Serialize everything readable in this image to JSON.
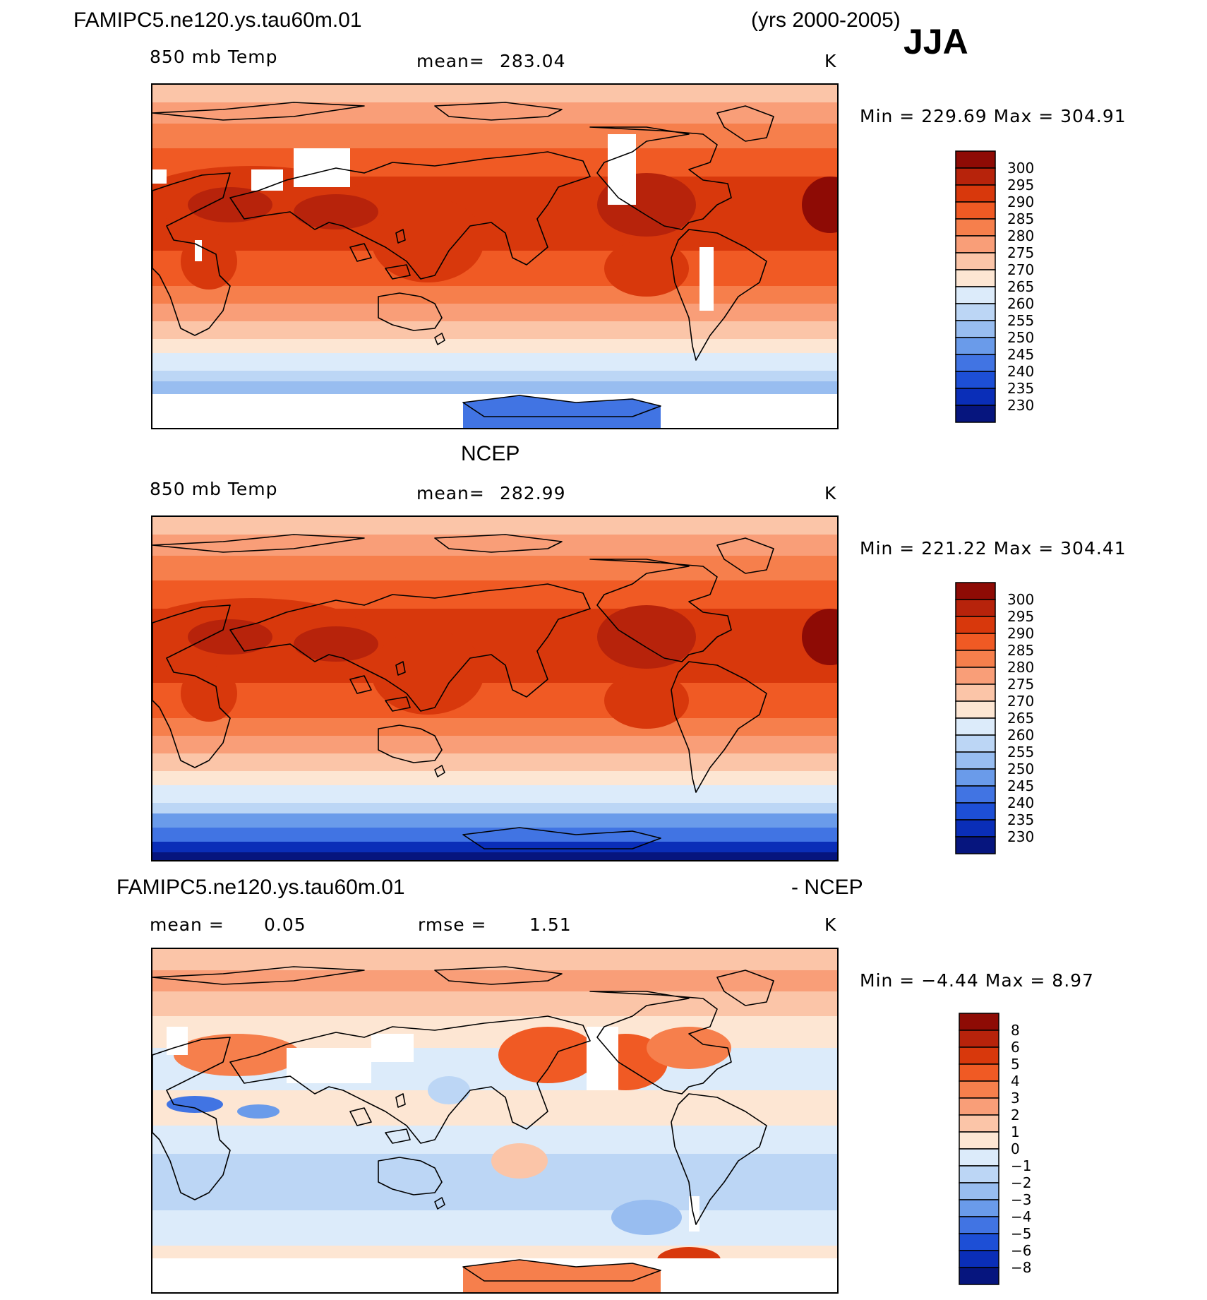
{
  "header": {
    "case_name": "FAMIPC5.ne120.ys.tau60m.01",
    "years": "(yrs 2000-2005)",
    "season": "JJA"
  },
  "panels": [
    {
      "id": "model",
      "title": "",
      "variable": "850 mb Temp",
      "stat_left": "mean=",
      "stat_left_value": "283.04",
      "units": "K",
      "minmax": "Min = 229.69 Max = 304.91",
      "colorbar_levels": [
        "300",
        "295",
        "290",
        "285",
        "280",
        "275",
        "270",
        "265",
        "260",
        "255",
        "250",
        "245",
        "240",
        "235",
        "230"
      ],
      "colorbar_colors": [
        "#8e0b05",
        "#b7230b",
        "#d8380c",
        "#f05a24",
        "#f67f4c",
        "#f99e78",
        "#fbc5a8",
        "#fde6d3",
        "#dcebfa",
        "#bcd6f5",
        "#98bdf0",
        "#6a9bea",
        "#4174e3",
        "#1d4fd6",
        "#0a2eb8",
        "#06157e"
      ],
      "field": "model"
    },
    {
      "id": "obs",
      "title": "NCEP",
      "variable": "850 mb Temp",
      "stat_left": "mean=",
      "stat_left_value": "282.99",
      "units": "K",
      "minmax": "Min = 221.22 Max = 304.41",
      "colorbar_levels": [
        "300",
        "295",
        "290",
        "285",
        "280",
        "275",
        "270",
        "265",
        "260",
        "255",
        "250",
        "245",
        "240",
        "235",
        "230"
      ],
      "colorbar_colors": [
        "#8e0b05",
        "#b7230b",
        "#d8380c",
        "#f05a24",
        "#f67f4c",
        "#f99e78",
        "#fbc5a8",
        "#fde6d3",
        "#dcebfa",
        "#bcd6f5",
        "#98bdf0",
        "#6a9bea",
        "#4174e3",
        "#1d4fd6",
        "#0a2eb8",
        "#06157e"
      ],
      "field": "obs"
    },
    {
      "id": "diff",
      "title_left": "FAMIPC5.ne120.ys.tau60m.01",
      "title_right": "- NCEP",
      "stat_left": "mean =",
      "stat_left_value": "0.05",
      "stat_mid": "rmse =",
      "stat_mid_value": "1.51",
      "units": "K",
      "minmax": "Min = −4.44 Max = 8.97",
      "colorbar_levels": [
        "8",
        "6",
        "5",
        "4",
        "3",
        "2",
        "1",
        "0",
        "−1",
        "−2",
        "−3",
        "−4",
        "−5",
        "−6",
        "−8"
      ],
      "colorbar_colors": [
        "#8e0b05",
        "#b7230b",
        "#d8380c",
        "#f05a24",
        "#f67f4c",
        "#f99e78",
        "#fbc5a8",
        "#fde6d3",
        "#dcebfa",
        "#bcd6f5",
        "#98bdf0",
        "#6a9bea",
        "#4174e3",
        "#1d4fd6",
        "#0a2eb8",
        "#06157e"
      ],
      "field": "diff"
    }
  ]
}
